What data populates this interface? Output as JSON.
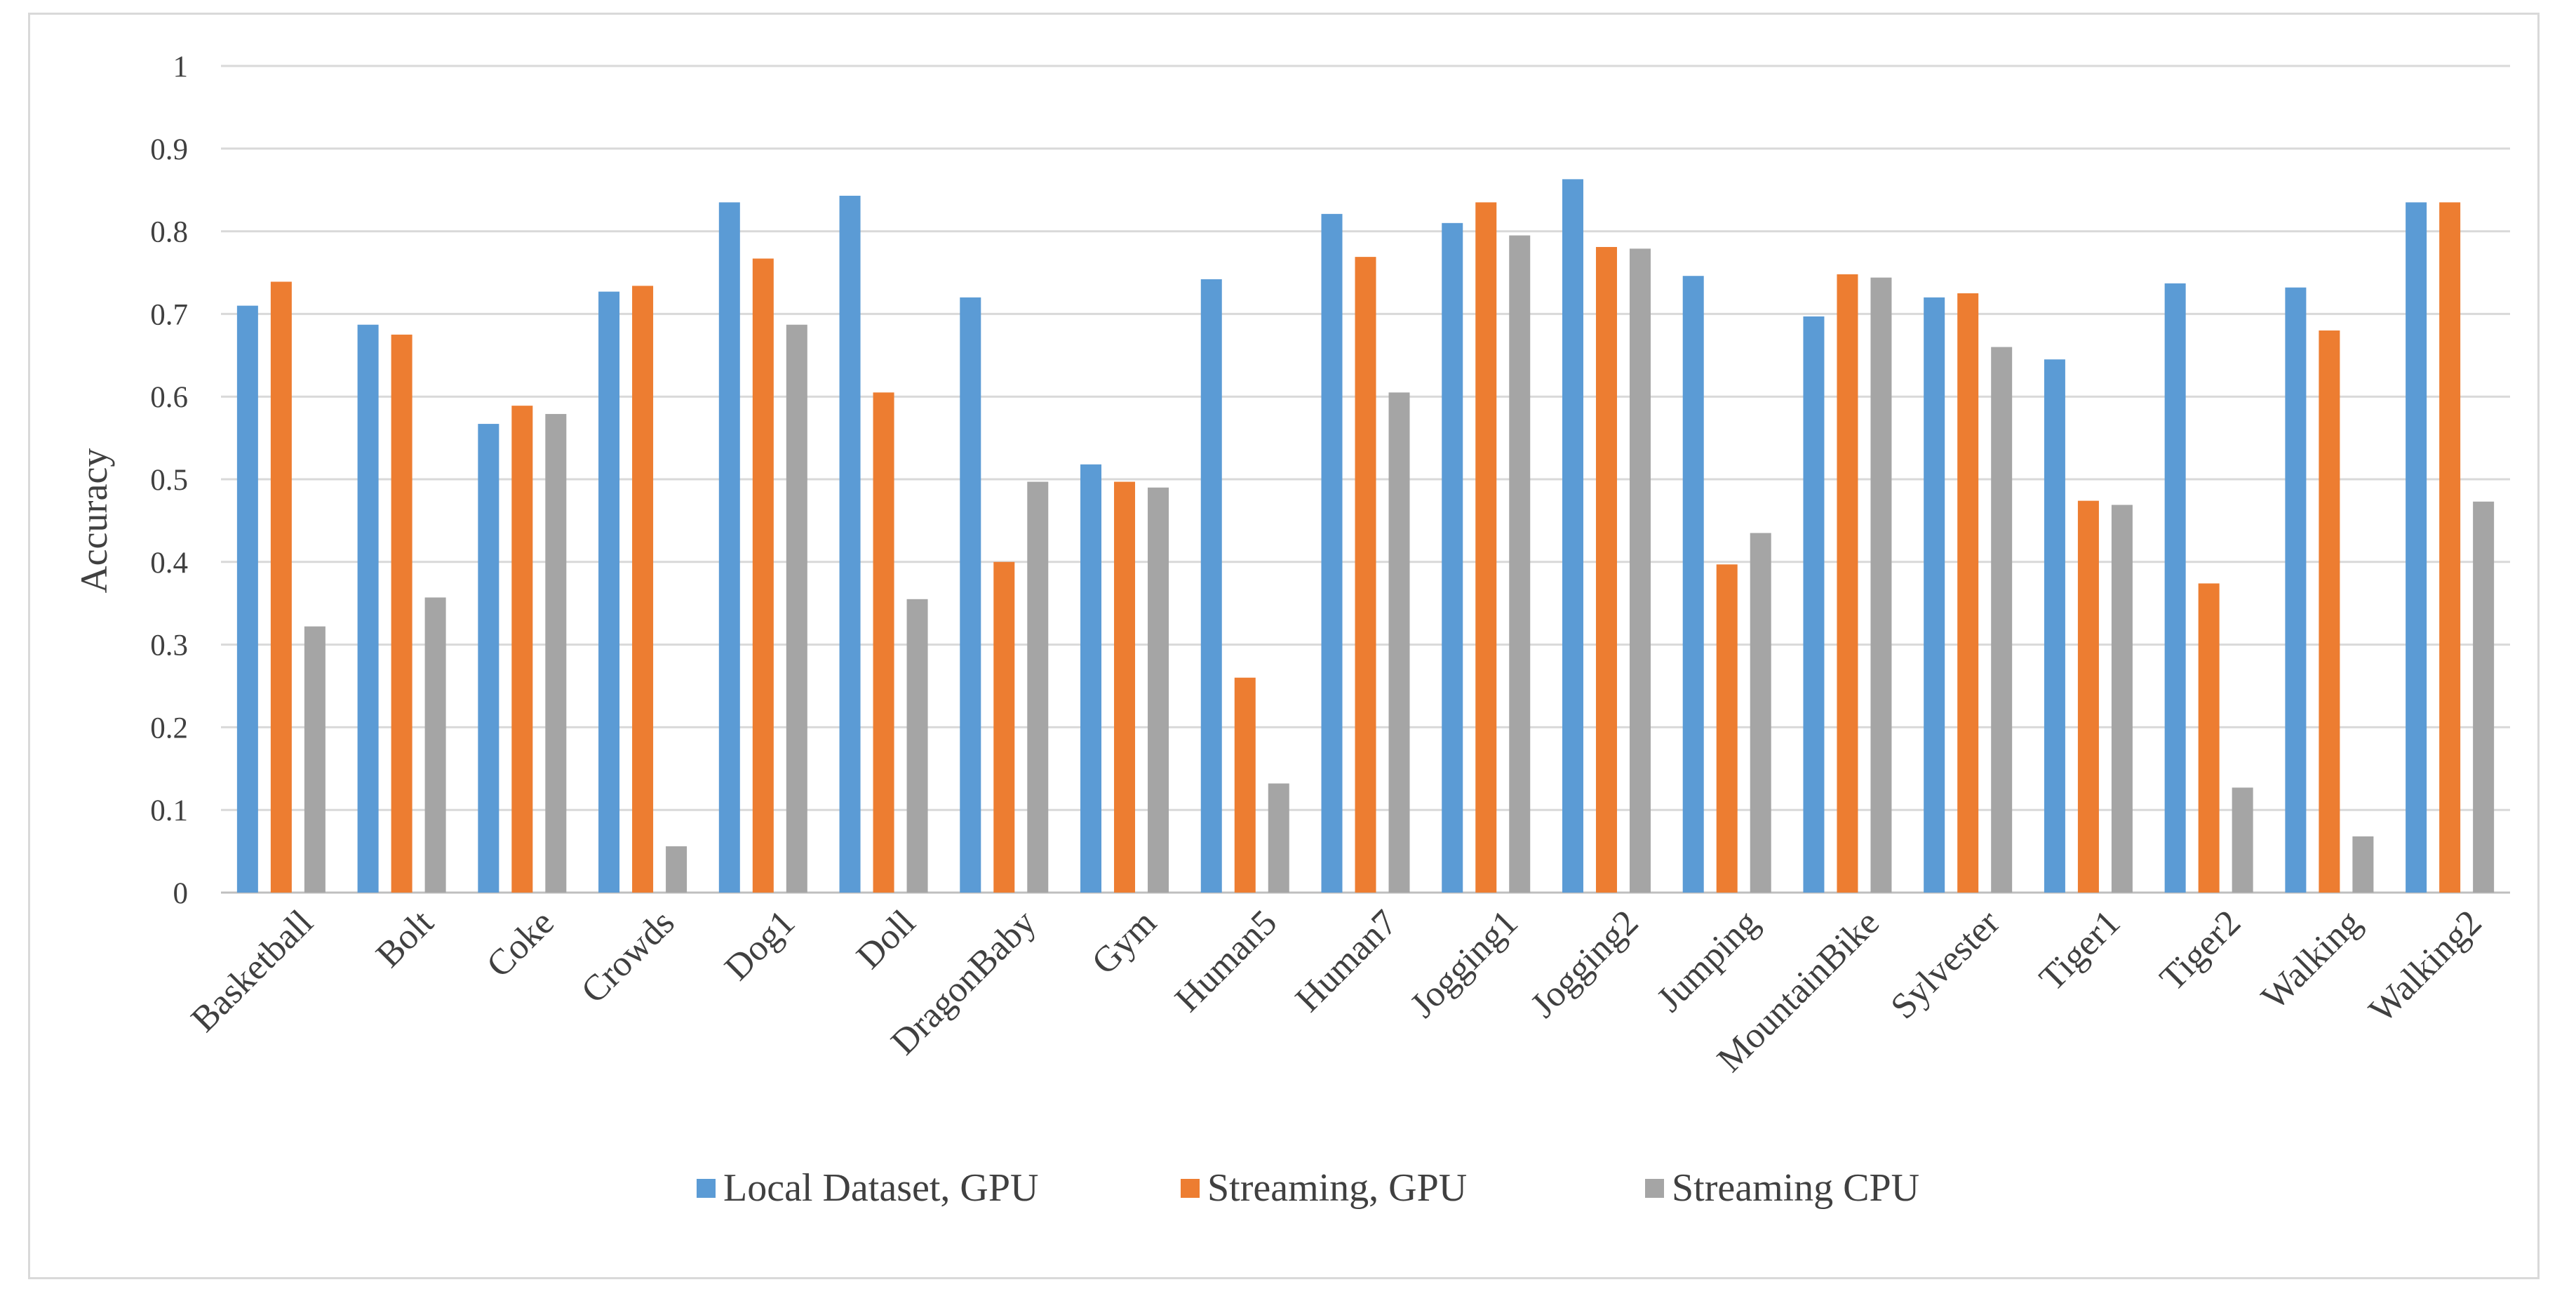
{
  "chart_data": {
    "type": "bar",
    "title": "",
    "xlabel": "",
    "ylabel": "Accuracy",
    "ylim": [
      0,
      1
    ],
    "yticks": [
      0,
      0.1,
      0.2,
      0.3,
      0.4,
      0.5,
      0.6,
      0.7,
      0.8,
      0.9,
      1
    ],
    "grid": true,
    "legend_position": "bottom",
    "categories": [
      "Basketball",
      "Bolt",
      "Coke",
      "Crowds",
      "Dog1",
      "Doll",
      "DragonBaby",
      "Gym",
      "Human5",
      "Human7",
      "Jogging1",
      "Jogging2",
      "Jumping",
      "MountainBike",
      "Sylvester",
      "Tiger1",
      "Tiger2",
      "Walking",
      "Walking2"
    ],
    "series": [
      {
        "name": "Local Dataset, GPU",
        "color": "#5b9bd5",
        "values": [
          0.71,
          0.687,
          0.567,
          0.727,
          0.835,
          0.843,
          0.72,
          0.518,
          0.742,
          0.821,
          0.81,
          0.863,
          0.746,
          0.697,
          0.72,
          0.645,
          0.737,
          0.732,
          0.835
        ]
      },
      {
        "name": "Streaming, GPU",
        "color": "#ed7d31",
        "values": [
          0.739,
          0.675,
          0.589,
          0.734,
          0.767,
          0.605,
          0.4,
          0.497,
          0.26,
          0.769,
          0.835,
          0.781,
          0.397,
          0.748,
          0.725,
          0.474,
          0.374,
          0.68,
          0.835
        ]
      },
      {
        "name": "Streaming CPU",
        "color": "#a5a5a5",
        "values": [
          0.322,
          0.357,
          0.579,
          0.056,
          0.687,
          0.355,
          0.497,
          0.49,
          0.132,
          0.605,
          0.795,
          0.779,
          0.435,
          0.744,
          0.66,
          0.469,
          0.127,
          0.068,
          0.473
        ]
      }
    ]
  }
}
